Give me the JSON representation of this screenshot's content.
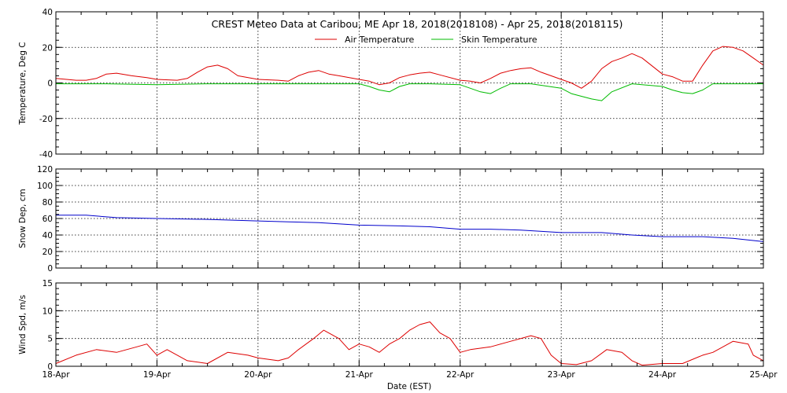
{
  "chart_data": {
    "title": "CREST Meteo Data at Caribou, ME   Apr 18, 2018(2018108) - Apr 25, 2018(2018115)",
    "xlabel": "Date (EST)",
    "x_ticks": [
      "18-Apr",
      "19-Apr",
      "20-Apr",
      "21-Apr",
      "22-Apr",
      "23-Apr",
      "24-Apr",
      "25-Apr"
    ],
    "x_range_days": [
      0,
      7
    ],
    "grid": true,
    "colors": {
      "air": "#dd0000",
      "skin": "#00bb00",
      "snow": "#0000cc",
      "wind": "#dd0000"
    },
    "panels": [
      {
        "id": "temperature",
        "type": "line",
        "ylabel": "Temperature, Deg C",
        "ylim": [
          -40,
          40
        ],
        "yticks": [
          "40",
          "20",
          "0",
          "-20",
          "-40"
        ],
        "yticks_values": [
          40,
          20,
          0,
          -20,
          -40
        ],
        "legend": {
          "placement": "top-center",
          "entries": [
            "Air Temperature",
            "Skin Temperature"
          ]
        },
        "series": [
          {
            "name": "Air Temperature",
            "x": [
              0,
              0.2,
              0.3,
              0.4,
              0.5,
              0.6,
              0.75,
              0.9,
              1.0,
              1.2,
              1.3,
              1.4,
              1.5,
              1.6,
              1.7,
              1.8,
              2.0,
              2.2,
              2.3,
              2.4,
              2.5,
              2.6,
              2.7,
              2.8,
              3.0,
              3.1,
              3.2,
              3.3,
              3.4,
              3.5,
              3.6,
              3.7,
              3.8,
              4.0,
              4.1,
              4.2,
              4.3,
              4.4,
              4.5,
              4.6,
              4.7,
              4.8,
              5.0,
              5.1,
              5.2,
              5.3,
              5.4,
              5.5,
              5.6,
              5.7,
              5.8,
              6.0,
              6.1,
              6.2,
              6.3,
              6.4,
              6.5,
              6.6,
              6.7,
              6.8,
              6.9,
              7.0
            ],
            "y": [
              2.5,
              1.5,
              1.5,
              2.5,
              5,
              5.5,
              4,
              3,
              2,
              1.5,
              2.5,
              6,
              9,
              10,
              8,
              4,
              2,
              1.5,
              1,
              4,
              6,
              7,
              5,
              4,
              2,
              1,
              -1,
              0,
              3,
              4.5,
              5.5,
              6,
              4.5,
              1.5,
              1,
              0,
              2.5,
              5.5,
              7,
              8,
              8.5,
              6,
              2,
              0,
              -3,
              1,
              8,
              12,
              14,
              16.5,
              14,
              5,
              3.5,
              1,
              1,
              10,
              18,
              20.5,
              20,
              18,
              14,
              10
            ]
          },
          {
            "name": "Skin Temperature",
            "x": [
              0,
              0.5,
              1.0,
              1.5,
              2.0,
              2.5,
              3.0,
              3.1,
              3.2,
              3.3,
              3.4,
              3.5,
              3.7,
              4.0,
              4.1,
              4.2,
              4.3,
              4.4,
              4.5,
              4.7,
              5.0,
              5.1,
              5.2,
              5.3,
              5.4,
              5.5,
              5.7,
              6.0,
              6.1,
              6.2,
              6.3,
              6.4,
              6.5,
              7.0
            ],
            "y": [
              -0.5,
              -0.5,
              -1,
              -0.5,
              -0.5,
              -0.5,
              -0.5,
              -2,
              -4,
              -5,
              -2,
              -0.5,
              -0.5,
              -1,
              -3,
              -5,
              -6,
              -3,
              -0.5,
              -0.5,
              -3,
              -6,
              -7.5,
              -9,
              -10,
              -5,
              -0.5,
              -2,
              -4,
              -5.5,
              -6,
              -4,
              -0.5,
              -0.5
            ]
          }
        ]
      },
      {
        "id": "snow",
        "type": "line",
        "ylabel": "Snow Dep, cm",
        "ylim": [
          0,
          120
        ],
        "yticks": [
          "120",
          "100",
          "80",
          "60",
          "40",
          "20",
          "0"
        ],
        "yticks_values": [
          120,
          100,
          80,
          60,
          40,
          20,
          0
        ],
        "series": [
          {
            "name": "",
            "x": [
              0,
              0.3,
              0.6,
              1.0,
              1.5,
              2.0,
              2.3,
              2.6,
              3.0,
              3.4,
              3.7,
              4.0,
              4.3,
              4.6,
              5.0,
              5.4,
              5.7,
              6.0,
              6.4,
              6.7,
              7.0
            ],
            "y": [
              64,
              64,
              61,
              60,
              59,
              57,
              56,
              55,
              52,
              51,
              50,
              47,
              47,
              46,
              43,
              43,
              40,
              38,
              38,
              36,
              32
            ]
          }
        ]
      },
      {
        "id": "wind",
        "type": "line",
        "ylabel": "Wind Spd, m/s",
        "ylim": [
          0,
          15
        ],
        "yticks": [
          "15",
          "10",
          "5",
          "0"
        ],
        "yticks_values": [
          15,
          10,
          5,
          0
        ],
        "series": [
          {
            "name": "",
            "x": [
              0,
              0.2,
              0.4,
              0.6,
              0.8,
              0.9,
              1.0,
              1.1,
              1.3,
              1.5,
              1.7,
              1.9,
              2.0,
              2.2,
              2.3,
              2.4,
              2.55,
              2.65,
              2.8,
              2.9,
              3.0,
              3.1,
              3.2,
              3.3,
              3.4,
              3.5,
              3.6,
              3.7,
              3.8,
              3.9,
              4.0,
              4.1,
              4.3,
              4.5,
              4.7,
              4.8,
              4.9,
              5.0,
              5.15,
              5.3,
              5.45,
              5.6,
              5.7,
              5.8,
              6.0,
              6.2,
              6.4,
              6.5,
              6.6,
              6.7,
              6.85,
              6.9,
              7.0
            ],
            "y": [
              0.5,
              2,
              3,
              2.5,
              3.5,
              4,
              2,
              3,
              1,
              0.5,
              2.5,
              2,
              1.5,
              1,
              1.5,
              3,
              5,
              6.5,
              5,
              3,
              4,
              3.5,
              2.5,
              4,
              5,
              6.5,
              7.5,
              8,
              6,
              5,
              2.5,
              3,
              3.5,
              4.5,
              5.5,
              5,
              2,
              0.5,
              0.3,
              1,
              3,
              2.5,
              1,
              0.2,
              0.5,
              0.5,
              2,
              2.5,
              3.5,
              4.5,
              4,
              2,
              1
            ]
          }
        ]
      }
    ]
  }
}
